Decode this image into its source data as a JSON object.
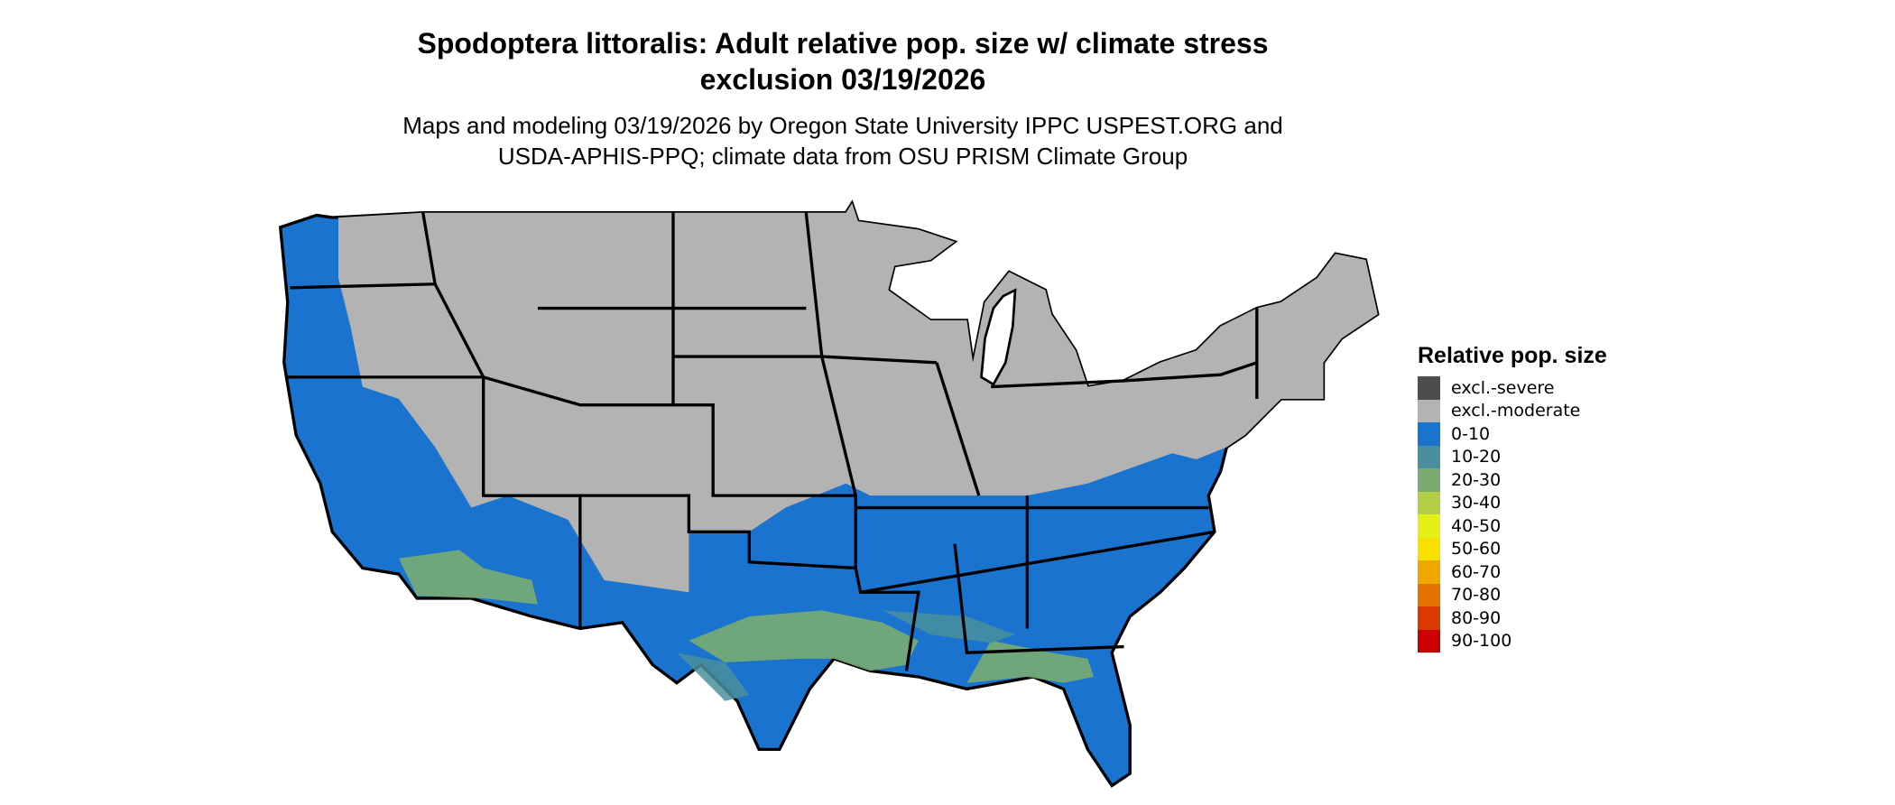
{
  "title": [
    "Spodoptera littoralis: Adult relative pop. size w/ climate stress",
    "exclusion 03/19/2026"
  ],
  "subtitle": [
    "Maps and modeling 03/19/2026 by Oregon State University IPPC USPEST.ORG and",
    "USDA-APHIS-PPQ; climate data from OSU PRISM Climate Group"
  ],
  "legend": {
    "title": "Relative pop. size",
    "items": [
      {
        "label": "excl.-severe",
        "color": "#4d4d4d"
      },
      {
        "label": "excl.-moderate",
        "color": "#b3b3b3"
      },
      {
        "label": "0-10",
        "color": "#1a73cf"
      },
      {
        "label": "10-20",
        "color": "#4a8f9e"
      },
      {
        "label": "20-30",
        "color": "#7aac72"
      },
      {
        "label": "30-40",
        "color": "#b2cf45"
      },
      {
        "label": "40-50",
        "color": "#e5f019"
      },
      {
        "label": "50-60",
        "color": "#f8e000"
      },
      {
        "label": "60-70",
        "color": "#f0a800"
      },
      {
        "label": "70-80",
        "color": "#e67200"
      },
      {
        "label": "80-90",
        "color": "#da3a00"
      },
      {
        "label": "90-100",
        "color": "#cc0000"
      }
    ]
  },
  "map": {
    "region": "Contiguous United States",
    "state_border_color": "#000000"
  }
}
